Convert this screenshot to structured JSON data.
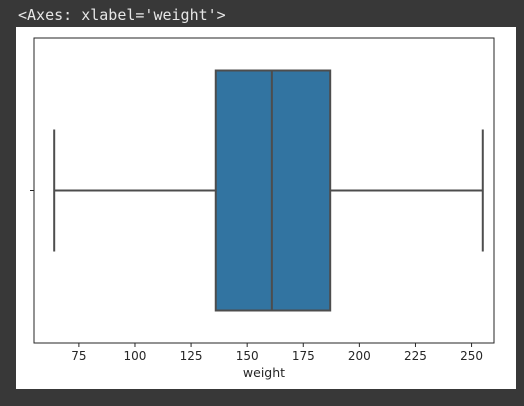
{
  "output": {
    "repr_text": "<Axes: xlabel='weight'>"
  },
  "chart_data": {
    "type": "boxplot",
    "orientation": "horizontal",
    "title": "",
    "xlabel": "weight",
    "ylabel": "",
    "xlim": [
      55,
      260
    ],
    "x_ticks": [
      75,
      100,
      125,
      150,
      175,
      200,
      225,
      250
    ],
    "box": {
      "whisker_low": 64,
      "q1": 136,
      "median": 161,
      "q3": 187,
      "whisker_high": 255
    },
    "grid": false,
    "legend": "none",
    "colors": {
      "box_fill": "#3274a1",
      "line": "#4d4d4d",
      "axes": "#262626"
    }
  }
}
